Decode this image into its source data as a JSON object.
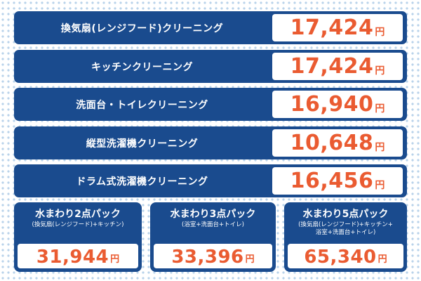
{
  "services": [
    {
      "label": "換気扇(レンジフード)クリーニング",
      "price": "17,424",
      "unit": "円"
    },
    {
      "label": "キッチンクリーニング",
      "price": "17,424",
      "unit": "円"
    },
    {
      "label": "洗面台・トイレクリーニング",
      "price": "16,940",
      "unit": "円"
    },
    {
      "label": "縦型洗濯機クリーニング",
      "price": "10,648",
      "unit": "円"
    },
    {
      "label": "ドラム式洗濯機クリーニング",
      "price": "16,456",
      "unit": "円"
    }
  ],
  "packs": [
    {
      "title": "水まわり2点パック",
      "sub1": "(換気扇(レンジフード)+キッチン)",
      "sub2": "",
      "price": "31,944",
      "unit": "円"
    },
    {
      "title": "水まわり3点パック",
      "sub1": "(浴室+洗面台+トイレ)",
      "sub2": "",
      "price": "33,396",
      "unit": "円"
    },
    {
      "title": "水まわり5点パック",
      "sub1": "(換気扇(レンジフード)+キッチン+",
      "sub2": "浴室+洗面台+トイレ)",
      "price": "65,340",
      "unit": "円"
    }
  ],
  "colors": {
    "navy": "#1a4b8e",
    "price": "#ea5b31",
    "dots": "#b9d3ea"
  }
}
